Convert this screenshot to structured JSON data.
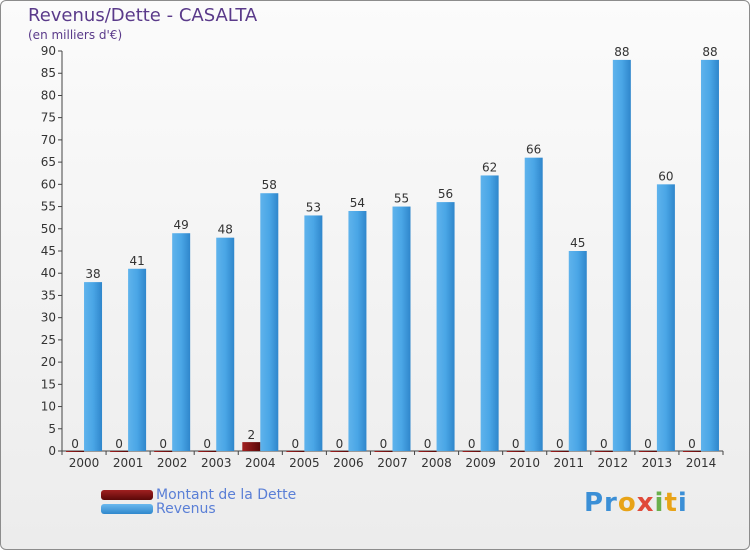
{
  "title": "Revenus/Dette - CASALTA",
  "subtitle": "(en milliers d'€)",
  "colors": {
    "dette": "#7a1010",
    "revenus": "#3f9be0",
    "axis": "#444444",
    "grid": "#d0d0d0"
  },
  "legend": [
    {
      "label": "Montant de la Dette",
      "color": "#7a1010"
    },
    {
      "label": "Revenus",
      "color": "#3f9be0"
    }
  ],
  "logo": "Proxiti",
  "chart_data": {
    "type": "bar",
    "categories": [
      "2000",
      "2001",
      "2002",
      "2003",
      "2004",
      "2005",
      "2006",
      "2007",
      "2008",
      "2009",
      "2010",
      "2011",
      "2012",
      "2013",
      "2014"
    ],
    "series": [
      {
        "name": "Montant de la Dette",
        "values": [
          0,
          0,
          0,
          0,
          2,
          0,
          0,
          0,
          0,
          0,
          0,
          0,
          0,
          0,
          0
        ]
      },
      {
        "name": "Revenus",
        "values": [
          38,
          41,
          49,
          48,
          58,
          53,
          54,
          55,
          56,
          62,
          66,
          45,
          88,
          60,
          88
        ]
      }
    ],
    "ylim": [
      0,
      90
    ],
    "yticks": [
      0,
      5,
      10,
      15,
      20,
      25,
      30,
      35,
      40,
      45,
      50,
      55,
      60,
      65,
      70,
      75,
      80,
      85,
      90
    ],
    "grid": false,
    "legend_position": "bottom-left"
  }
}
